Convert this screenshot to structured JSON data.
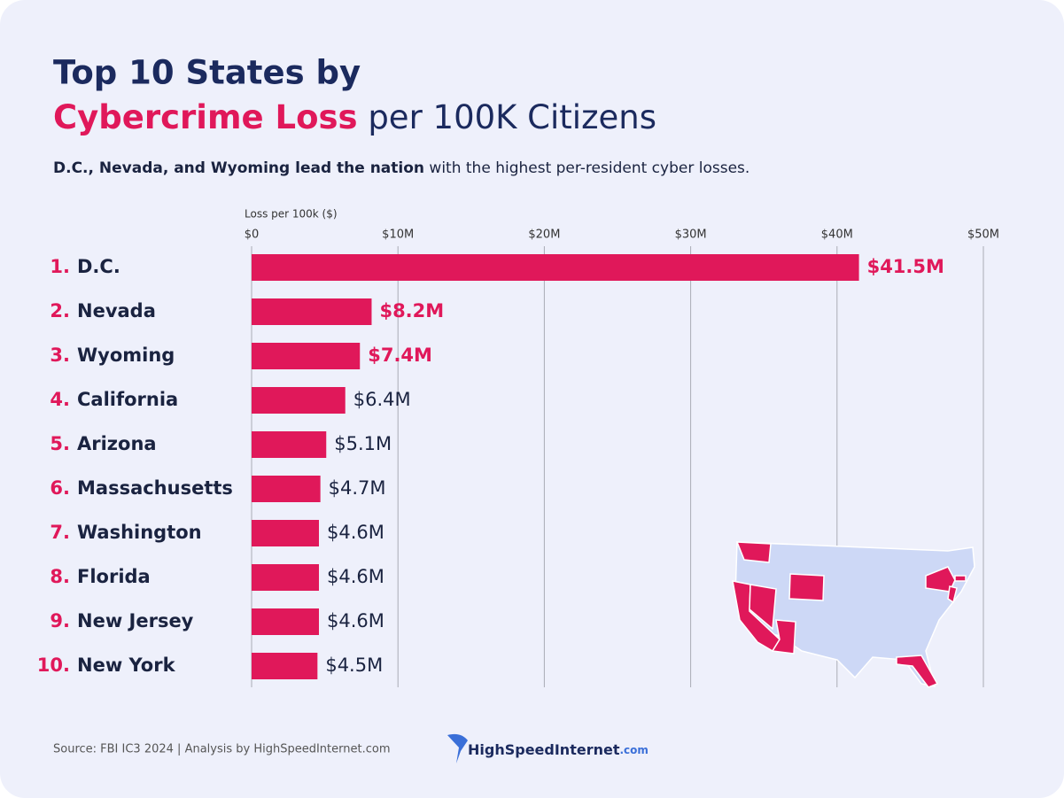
{
  "chart_data": {
    "type": "bar",
    "orientation": "horizontal",
    "title_line1": "Top 10 States by",
    "title_highlight": "Cybercrime Loss",
    "title_rest": "per 100K Citizens",
    "subtitle_bold": "D.C., Nevada, and Wyoming lead the nation",
    "subtitle_rest": "with the highest per-resident cyber losses.",
    "x_label": "Loss per 100k ($)",
    "ranks": [
      "1.",
      "2.",
      "3.",
      "4.",
      "5.",
      "6.",
      "7.",
      "8.",
      "9.",
      "10."
    ],
    "categories": [
      "D.C.",
      "Nevada",
      "Wyoming",
      "California",
      "Arizona",
      "Massachusetts",
      "Washington",
      "Florida",
      "New Jersey",
      "New York"
    ],
    "values": [
      41.5,
      8.2,
      7.4,
      6.4,
      5.1,
      4.7,
      4.6,
      4.6,
      4.6,
      4.5
    ],
    "value_labels": [
      "$41.5M",
      "$8.2M",
      "$7.4M",
      "$6.4M",
      "$5.1M",
      "$4.7M",
      "$4.6M",
      "$4.6M",
      "$4.6M",
      "$4.5M"
    ],
    "value_label_colors": [
      "#e0185a",
      "#e0185a",
      "#e0185a",
      "#1a2340",
      "#1a2340",
      "#1a2340",
      "#1a2340",
      "#1a2340",
      "#1a2340",
      "#1a2340"
    ],
    "color": "#e0185a",
    "xlim": [
      0,
      50
    ],
    "xticks": [
      {
        "value": 0,
        "label": "$0"
      },
      {
        "value": 10,
        "label": "$10M"
      },
      {
        "value": 20,
        "label": "$20M"
      },
      {
        "value": 30,
        "label": "$30M"
      },
      {
        "value": 40,
        "label": "$40M"
      },
      {
        "value": 50,
        "label": "$50M"
      }
    ],
    "grid": true,
    "source": "Source: FBI IC3 2024 | Analysis by HighSpeedInternet.com",
    "logo_name": "HighSpeedInternet",
    "logo_suffix": ".com"
  }
}
